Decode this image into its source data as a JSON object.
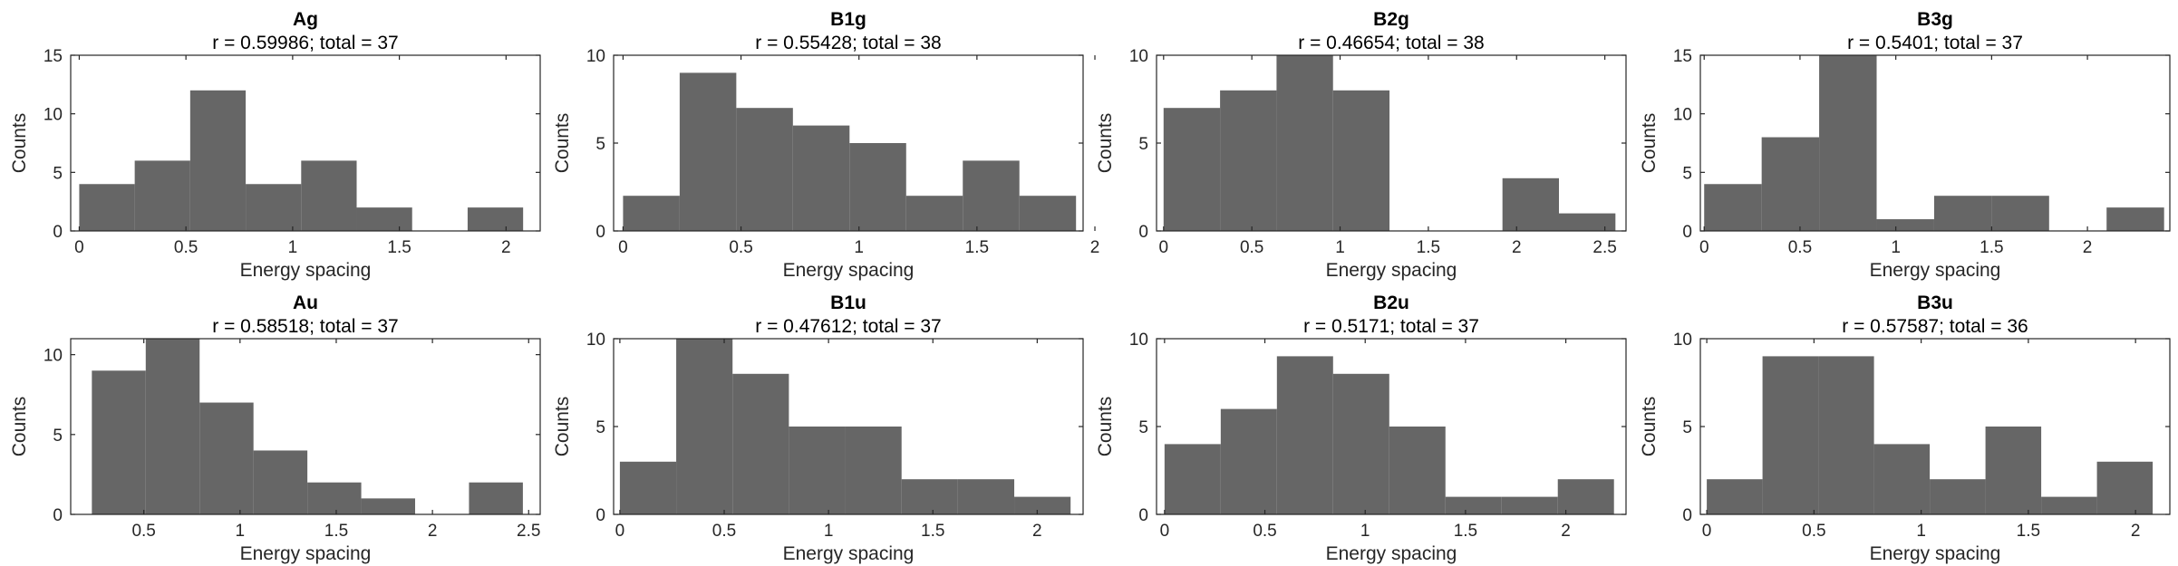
{
  "colors": {
    "bar": "#666666",
    "axis": "#262626",
    "background": "#ffffff"
  },
  "chart_data": [
    {
      "type": "bar",
      "title": "Ag",
      "subtitle": "r = 0.59986; total = 37",
      "xlabel": "Energy spacing",
      "ylabel": "Counts",
      "bin_edges": [
        0,
        0.26,
        0.52,
        0.78,
        1.04,
        1.3,
        1.56,
        1.82,
        2.08
      ],
      "values": [
        4,
        6,
        12,
        4,
        6,
        2,
        0,
        2
      ],
      "xlim": [
        -0.04,
        2.16
      ],
      "ylim": [
        0,
        15
      ],
      "xticks": [
        0,
        0.5,
        1,
        1.5,
        2
      ],
      "xtick_labels": [
        "0",
        "0.5",
        "1",
        "1.5",
        "2"
      ],
      "yticks": [
        0,
        5,
        10,
        15
      ],
      "ytick_labels": [
        "0",
        "5",
        "10",
        "15"
      ]
    },
    {
      "type": "bar",
      "title": "B1g",
      "subtitle": "r = 0.55428; total = 38",
      "xlabel": "Energy spacing",
      "ylabel": "Counts",
      "bin_edges": [
        0,
        0.24,
        0.48,
        0.72,
        0.96,
        1.2,
        1.44,
        1.68,
        1.92
      ],
      "values": [
        2,
        9,
        7,
        6,
        5,
        2,
        4,
        2
      ],
      "xlim": [
        -0.04,
        1.95
      ],
      "ylim": [
        0,
        10
      ],
      "xticks": [
        0,
        0.5,
        1,
        1.5,
        2
      ],
      "xtick_labels": [
        "0",
        "0.5",
        "1",
        "1.5",
        "2"
      ],
      "yticks": [
        0,
        5,
        10
      ],
      "ytick_labels": [
        "0",
        "5",
        "10"
      ]
    },
    {
      "type": "bar",
      "title": "B2g",
      "subtitle": "r = 0.46654; total = 38",
      "xlabel": "Energy spacing",
      "ylabel": "Counts",
      "bin_edges": [
        0,
        0.32,
        0.64,
        0.96,
        1.28,
        1.6,
        1.92,
        2.24,
        2.56
      ],
      "values": [
        7,
        8,
        10,
        8,
        0,
        0,
        3,
        1
      ],
      "xlim": [
        -0.04,
        2.62
      ],
      "ylim": [
        0,
        10
      ],
      "xticks": [
        0,
        0.5,
        1,
        1.5,
        2,
        2.5
      ],
      "xtick_labels": [
        "0",
        "0.5",
        "1",
        "1.5",
        "2",
        "2.5"
      ],
      "yticks": [
        0,
        5,
        10
      ],
      "ytick_labels": [
        "0",
        "5",
        "10"
      ]
    },
    {
      "type": "bar",
      "title": "B3g",
      "subtitle": "r = 0.5401; total = 37",
      "xlabel": "Energy spacing",
      "ylabel": "Counts",
      "bin_edges": [
        0,
        0.3,
        0.6,
        0.9,
        1.2,
        1.5,
        1.8,
        2.1,
        2.4
      ],
      "values": [
        4,
        8,
        15,
        1,
        3,
        3,
        0,
        2
      ],
      "xlim": [
        -0.02,
        2.43
      ],
      "ylim": [
        0,
        15
      ],
      "xticks": [
        0,
        0.5,
        1,
        1.5,
        2
      ],
      "xtick_labels": [
        "0",
        "0.5",
        "1",
        "1.5",
        "2"
      ],
      "yticks": [
        0,
        5,
        10,
        15
      ],
      "ytick_labels": [
        "0",
        "5",
        "10",
        "15"
      ]
    },
    {
      "type": "bar",
      "title": "Au",
      "subtitle": "r = 0.58518; total = 37",
      "xlabel": "Energy spacing",
      "ylabel": "Counts",
      "bin_edges": [
        0.23,
        0.51,
        0.79,
        1.07,
        1.35,
        1.63,
        1.91,
        2.19,
        2.47
      ],
      "values": [
        9,
        11,
        7,
        4,
        2,
        1,
        0,
        2
      ],
      "xlim": [
        0.12,
        2.56
      ],
      "ylim": [
        0,
        11
      ],
      "xticks": [
        0.5,
        1,
        1.5,
        2,
        2.5
      ],
      "xtick_labels": [
        "0.5",
        "1",
        "1.5",
        "2",
        "2.5"
      ],
      "yticks": [
        0,
        5,
        10
      ],
      "ytick_labels": [
        "0",
        "5",
        "10"
      ]
    },
    {
      "type": "bar",
      "title": "B1u",
      "subtitle": "r = 0.47612; total = 37",
      "xlabel": "Energy spacing",
      "ylabel": "Counts",
      "bin_edges": [
        0,
        0.27,
        0.54,
        0.81,
        1.08,
        1.35,
        1.62,
        1.89,
        2.16
      ],
      "values": [
        3,
        10,
        8,
        5,
        5,
        2,
        2,
        1
      ],
      "xlim": [
        -0.03,
        2.22
      ],
      "ylim": [
        0,
        10
      ],
      "xticks": [
        0,
        0.5,
        1,
        1.5,
        2
      ],
      "xtick_labels": [
        "0",
        "0.5",
        "1",
        "1.5",
        "2"
      ],
      "yticks": [
        0,
        5,
        10
      ],
      "ytick_labels": [
        "0",
        "5",
        "10"
      ]
    },
    {
      "type": "bar",
      "title": "B2u",
      "subtitle": "r = 0.5171; total = 37",
      "xlabel": "Energy spacing",
      "ylabel": "Counts",
      "bin_edges": [
        0,
        0.28,
        0.56,
        0.84,
        1.12,
        1.4,
        1.68,
        1.96,
        2.24
      ],
      "values": [
        4,
        6,
        9,
        8,
        5,
        1,
        1,
        2
      ],
      "xlim": [
        -0.04,
        2.3
      ],
      "ylim": [
        0,
        10
      ],
      "xticks": [
        0,
        0.5,
        1,
        1.5,
        2
      ],
      "xtick_labels": [
        "0",
        "0.5",
        "1",
        "1.5",
        "2"
      ],
      "yticks": [
        0,
        5,
        10
      ],
      "ytick_labels": [
        "0",
        "5",
        "10"
      ]
    },
    {
      "type": "bar",
      "title": "B3u",
      "subtitle": "r = 0.57587; total = 36",
      "xlabel": "Energy spacing",
      "ylabel": "Counts",
      "bin_edges": [
        0,
        0.26,
        0.52,
        0.78,
        1.04,
        1.3,
        1.56,
        1.82,
        2.08
      ],
      "values": [
        2,
        9,
        9,
        4,
        2,
        5,
        1,
        3
      ],
      "xlim": [
        -0.03,
        2.16
      ],
      "ylim": [
        0,
        10
      ],
      "xticks": [
        0,
        0.5,
        1,
        1.5,
        2
      ],
      "xtick_labels": [
        "0",
        "0.5",
        "1",
        "1.5",
        "2"
      ],
      "yticks": [
        0,
        5,
        10
      ],
      "ytick_labels": [
        "0",
        "5",
        "10"
      ]
    }
  ]
}
